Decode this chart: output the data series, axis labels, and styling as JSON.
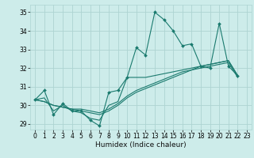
{
  "xlabel": "Humidex (Indice chaleur)",
  "xlim": [
    -0.5,
    23.5
  ],
  "ylim": [
    28.7,
    35.4
  ],
  "yticks": [
    29,
    30,
    31,
    32,
    33,
    34,
    35
  ],
  "xticks": [
    0,
    1,
    2,
    3,
    4,
    5,
    6,
    7,
    8,
    9,
    10,
    11,
    12,
    13,
    14,
    15,
    16,
    17,
    18,
    19,
    20,
    21,
    22,
    23
  ],
  "bg_color": "#cdecea",
  "grid_color": "#add4d2",
  "line_color": "#1a7a6e",
  "series": [
    [
      30.3,
      30.8,
      29.5,
      30.1,
      29.7,
      29.7,
      29.2,
      28.9,
      30.7,
      30.8,
      31.5,
      33.1,
      32.7,
      35.0,
      34.6,
      34.0,
      33.2,
      33.3,
      32.1,
      32.0,
      34.4,
      32.1,
      31.6
    ],
    [
      30.3,
      30.4,
      29.7,
      30.0,
      29.7,
      29.6,
      29.3,
      29.2,
      30.0,
      30.2,
      31.5,
      31.5,
      31.5,
      31.6,
      31.7,
      31.8,
      31.9,
      32.0,
      32.1,
      32.2,
      32.3,
      32.4,
      31.6
    ],
    [
      30.3,
      30.2,
      30.0,
      29.9,
      29.8,
      29.7,
      29.6,
      29.5,
      29.7,
      30.0,
      30.4,
      30.7,
      30.9,
      31.1,
      31.3,
      31.5,
      31.7,
      31.9,
      32.0,
      32.1,
      32.2,
      32.3,
      31.5
    ],
    [
      30.3,
      30.2,
      30.0,
      29.9,
      29.8,
      29.8,
      29.7,
      29.6,
      29.8,
      30.1,
      30.5,
      30.8,
      31.0,
      31.2,
      31.4,
      31.6,
      31.8,
      31.9,
      32.1,
      32.2,
      32.3,
      32.4,
      31.6
    ]
  ],
  "x_values": [
    0,
    1,
    2,
    3,
    4,
    5,
    6,
    7,
    8,
    9,
    10,
    11,
    12,
    13,
    14,
    15,
    16,
    17,
    18,
    19,
    20,
    21,
    22
  ]
}
